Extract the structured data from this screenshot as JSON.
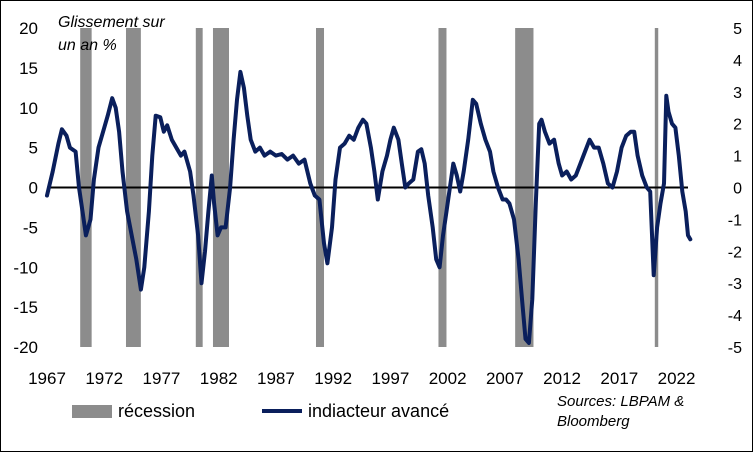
{
  "chart_data": {
    "type": "line",
    "title": "",
    "annotation": [
      "Glissement sur",
      "un an %"
    ],
    "xlabel": "",
    "ylabel": "",
    "x_range": [
      1967,
      2023
    ],
    "x_ticks": [
      "1967",
      "1972",
      "1977",
      "1982",
      "1987",
      "1992",
      "1997",
      "2002",
      "2007",
      "2012",
      "2017",
      "2022"
    ],
    "ylim_left": [
      -20,
      20
    ],
    "y_ticks_left": [
      20,
      15,
      10,
      5,
      0,
      -5,
      -10,
      -15,
      -20
    ],
    "ylim_right": [
      -5,
      5
    ],
    "y_ticks_right": [
      5,
      4,
      3,
      2,
      1,
      0,
      -1,
      -2,
      -3,
      -4,
      -5
    ],
    "grid": false,
    "legend_position": "bottom",
    "legend": [
      {
        "label": "récession",
        "kind": "bar",
        "color": "#8c8c8c"
      },
      {
        "label": "indiacteur avancé",
        "kind": "line",
        "color": "#0a1f5c"
      }
    ],
    "source": [
      "Sources: LBPAM &",
      "Bloomberg"
    ],
    "recessions": [
      [
        1969.9,
        1970.9
      ],
      [
        1973.9,
        1975.2
      ],
      [
        1980.0,
        1980.6
      ],
      [
        1981.5,
        1982.9
      ],
      [
        1990.5,
        1991.2
      ],
      [
        2001.2,
        2001.9
      ],
      [
        2007.9,
        2009.5
      ],
      [
        2020.1,
        2020.4
      ]
    ],
    "series": [
      {
        "name": "indiacteur avancé",
        "axis": "left",
        "color": "#0a1f5c",
        "points": [
          [
            1967.0,
            -1
          ],
          [
            1967.5,
            2
          ],
          [
            1968.0,
            5.5
          ],
          [
            1968.3,
            7.3
          ],
          [
            1968.7,
            6.5
          ],
          [
            1969.0,
            5
          ],
          [
            1969.5,
            4.5
          ],
          [
            1969.8,
            0
          ],
          [
            1970.1,
            -3
          ],
          [
            1970.4,
            -6
          ],
          [
            1970.8,
            -4
          ],
          [
            1971.1,
            1
          ],
          [
            1971.5,
            5
          ],
          [
            1971.9,
            7
          ],
          [
            1972.3,
            9
          ],
          [
            1972.7,
            11.2
          ],
          [
            1973.0,
            10
          ],
          [
            1973.3,
            7
          ],
          [
            1973.6,
            2
          ],
          [
            1974.0,
            -3
          ],
          [
            1974.4,
            -6
          ],
          [
            1974.8,
            -9
          ],
          [
            1975.2,
            -12.8
          ],
          [
            1975.5,
            -10
          ],
          [
            1975.9,
            -3
          ],
          [
            1976.2,
            4
          ],
          [
            1976.5,
            9
          ],
          [
            1976.9,
            8.8
          ],
          [
            1977.2,
            7
          ],
          [
            1977.5,
            7.8
          ],
          [
            1977.9,
            6
          ],
          [
            1978.3,
            5
          ],
          [
            1978.7,
            4
          ],
          [
            1979.0,
            4.5
          ],
          [
            1979.5,
            2
          ],
          [
            1979.8,
            -1
          ],
          [
            1980.2,
            -6
          ],
          [
            1980.5,
            -12
          ],
          [
            1980.8,
            -8
          ],
          [
            1981.1,
            -3
          ],
          [
            1981.4,
            1.5
          ],
          [
            1981.6,
            -2
          ],
          [
            1981.9,
            -6
          ],
          [
            1982.2,
            -5
          ],
          [
            1982.6,
            -5
          ],
          [
            1983.0,
            0
          ],
          [
            1983.3,
            6
          ],
          [
            1983.6,
            11
          ],
          [
            1983.9,
            14.5
          ],
          [
            1984.2,
            12.5
          ],
          [
            1984.5,
            9
          ],
          [
            1984.8,
            6
          ],
          [
            1985.2,
            4.5
          ],
          [
            1985.6,
            5
          ],
          [
            1986.0,
            4
          ],
          [
            1986.5,
            4.5
          ],
          [
            1987.0,
            4
          ],
          [
            1987.5,
            4.2
          ],
          [
            1988.0,
            3.5
          ],
          [
            1988.5,
            4
          ],
          [
            1989.0,
            3
          ],
          [
            1989.5,
            3.5
          ],
          [
            1990.0,
            0.5
          ],
          [
            1990.4,
            -1
          ],
          [
            1990.8,
            -1.5
          ],
          [
            1991.2,
            -7
          ],
          [
            1991.5,
            -9.5
          ],
          [
            1991.9,
            -5
          ],
          [
            1992.2,
            1
          ],
          [
            1992.6,
            5
          ],
          [
            1993.0,
            5.5
          ],
          [
            1993.4,
            6.5
          ],
          [
            1993.8,
            6
          ],
          [
            1994.2,
            7.5
          ],
          [
            1994.6,
            8.5
          ],
          [
            1994.9,
            8
          ],
          [
            1995.3,
            5
          ],
          [
            1995.6,
            2
          ],
          [
            1995.9,
            -1.5
          ],
          [
            1996.3,
            2
          ],
          [
            1996.7,
            4
          ],
          [
            1997.0,
            6
          ],
          [
            1997.3,
            7.5
          ],
          [
            1997.7,
            6
          ],
          [
            1998.0,
            3
          ],
          [
            1998.3,
            0
          ],
          [
            1998.6,
            0.5
          ],
          [
            1999.0,
            1
          ],
          [
            1999.4,
            4.5
          ],
          [
            1999.7,
            4.8
          ],
          [
            2000.0,
            3
          ],
          [
            2000.3,
            -1
          ],
          [
            2000.7,
            -5
          ],
          [
            2001.0,
            -9
          ],
          [
            2001.3,
            -10
          ],
          [
            2001.6,
            -6
          ],
          [
            2001.9,
            -3
          ],
          [
            2002.2,
            0
          ],
          [
            2002.5,
            3
          ],
          [
            2002.8,
            1.5
          ],
          [
            2003.1,
            -0.5
          ],
          [
            2003.4,
            2
          ],
          [
            2003.8,
            6
          ],
          [
            2004.2,
            11
          ],
          [
            2004.5,
            10.5
          ],
          [
            2004.9,
            8
          ],
          [
            2005.3,
            6
          ],
          [
            2005.7,
            4.5
          ],
          [
            2006.0,
            2
          ],
          [
            2006.4,
            0
          ],
          [
            2006.8,
            -1.5
          ],
          [
            2007.1,
            -1.5
          ],
          [
            2007.4,
            -2
          ],
          [
            2007.8,
            -4
          ],
          [
            2008.2,
            -9
          ],
          [
            2008.5,
            -14
          ],
          [
            2008.8,
            -19
          ],
          [
            2009.1,
            -19.5
          ],
          [
            2009.4,
            -14
          ],
          [
            2009.7,
            -2
          ],
          [
            2010.0,
            8
          ],
          [
            2010.2,
            8.5
          ],
          [
            2010.5,
            7
          ],
          [
            2010.9,
            5.5
          ],
          [
            2011.3,
            6
          ],
          [
            2011.7,
            3
          ],
          [
            2012.0,
            1.5
          ],
          [
            2012.4,
            2
          ],
          [
            2012.8,
            1
          ],
          [
            2013.2,
            1.5
          ],
          [
            2013.6,
            3
          ],
          [
            2014.0,
            4.5
          ],
          [
            2014.4,
            6
          ],
          [
            2014.8,
            5
          ],
          [
            2015.2,
            5
          ],
          [
            2015.6,
            3
          ],
          [
            2016.0,
            0.5
          ],
          [
            2016.4,
            0
          ],
          [
            2016.8,
            2
          ],
          [
            2017.2,
            5
          ],
          [
            2017.6,
            6.5
          ],
          [
            2018.0,
            7
          ],
          [
            2018.3,
            7
          ],
          [
            2018.6,
            4
          ],
          [
            2019.0,
            1.5
          ],
          [
            2019.4,
            0
          ],
          [
            2019.7,
            -0.5
          ],
          [
            2020.0,
            -11
          ],
          [
            2020.3,
            -5
          ],
          [
            2020.6,
            -2
          ],
          [
            2020.9,
            0.5
          ],
          [
            2021.1,
            11.5
          ],
          [
            2021.3,
            9.5
          ],
          [
            2021.6,
            8
          ],
          [
            2021.9,
            7.5
          ],
          [
            2022.2,
            4
          ],
          [
            2022.5,
            -0.5
          ],
          [
            2022.8,
            -3
          ],
          [
            2023.0,
            -6
          ],
          [
            2023.2,
            -6.5
          ]
        ]
      }
    ]
  }
}
